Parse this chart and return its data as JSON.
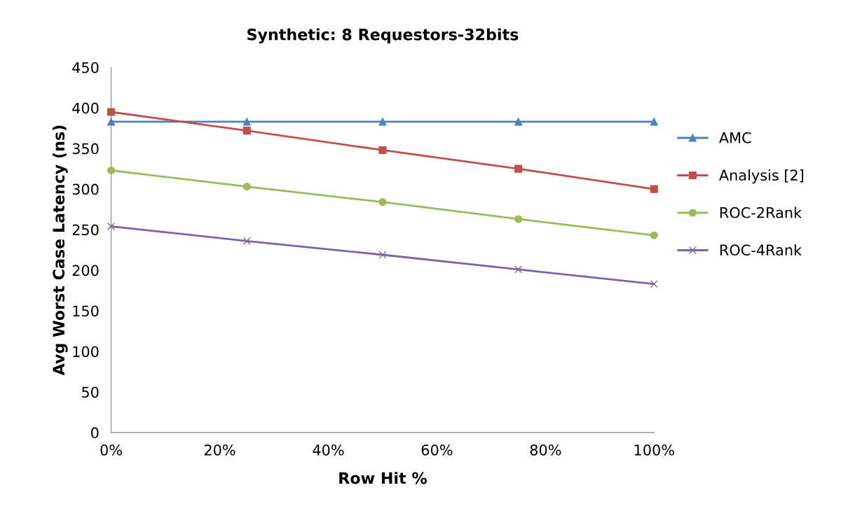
{
  "chart_data": {
    "type": "line",
    "title": "Synthetic: 8 Requestors-32bits",
    "xlabel": "Row Hit %",
    "ylabel": "Avg Worst Case Latency (ns)",
    "x": [
      0,
      25,
      50,
      75,
      100
    ],
    "series": [
      {
        "name": "AMC",
        "color": "#4f81bd",
        "marker": "triangle",
        "values": [
          383,
          383,
          383,
          383,
          383
        ]
      },
      {
        "name": "Analysis [2]",
        "color": "#c0504d",
        "marker": "square",
        "values": [
          395,
          372,
          348,
          325,
          300
        ]
      },
      {
        "name": "ROC-2Rank",
        "color": "#9bbb59",
        "marker": "circle",
        "values": [
          323,
          303,
          284,
          263,
          243
        ]
      },
      {
        "name": "ROC-4Rank",
        "color": "#8064a2",
        "marker": "cross",
        "values": [
          254,
          236,
          219,
          201,
          183
        ]
      }
    ],
    "xlim": [
      0,
      100
    ],
    "xticks": [
      {
        "value": 0,
        "label": "0%"
      },
      {
        "value": 20,
        "label": "20%"
      },
      {
        "value": 40,
        "label": "40%"
      },
      {
        "value": 60,
        "label": "60%"
      },
      {
        "value": 80,
        "label": "80%"
      },
      {
        "value": 100,
        "label": "100%"
      }
    ],
    "ylim": [
      0,
      450
    ],
    "yticks": [
      0,
      50,
      100,
      150,
      200,
      250,
      300,
      350,
      400,
      450
    ],
    "grid": false,
    "legend": "right",
    "line_style": "solid"
  }
}
